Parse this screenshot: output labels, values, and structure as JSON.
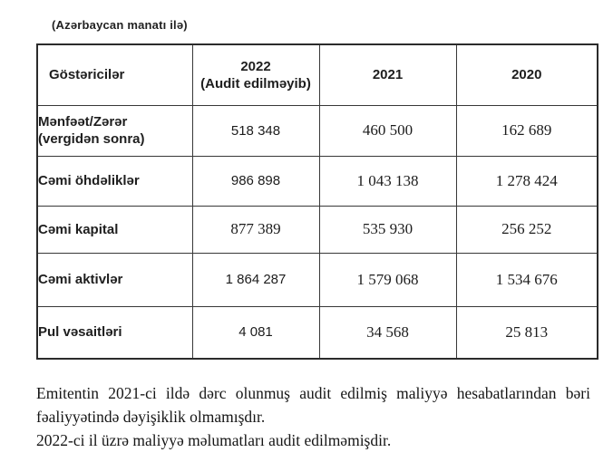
{
  "page": {
    "unit_note": "(Azərbaycan manatı ilə)"
  },
  "table": {
    "columns": [
      "Göstəricilər",
      "2022\n(Audit edilməyib)",
      "2021",
      "2020"
    ],
    "rows": [
      {
        "label": "Mənfəət/Zərər\n(vergidən sonra)",
        "values": [
          "518 348",
          "460 500",
          "162 689"
        ]
      },
      {
        "label": "Cəmi öhdəliklər",
        "values": [
          "986 898",
          "1 043 138",
          "1 278 424"
        ]
      },
      {
        "label": "Cəmi kapital",
        "values": [
          "877 389",
          "535 930",
          "256 252"
        ]
      },
      {
        "label": "Cəmi aktivlər",
        "values": [
          "1 864 287",
          "1 579 068",
          "1 534 676"
        ]
      },
      {
        "label": "Pul vəsaitləri",
        "values": [
          "4 081",
          "34 568",
          "25 813"
        ]
      }
    ]
  },
  "notes": {
    "paragraph_1": "Emitentin 2021-ci ildə dərc olunmuş audit edilmiş maliyyə hesabatlarından bəri fəaliyyətində dəyişiklik olmamışdır.",
    "paragraph_2": "2022-ci il üzrə maliyyə məlumatları audit edilməmişdir."
  }
}
